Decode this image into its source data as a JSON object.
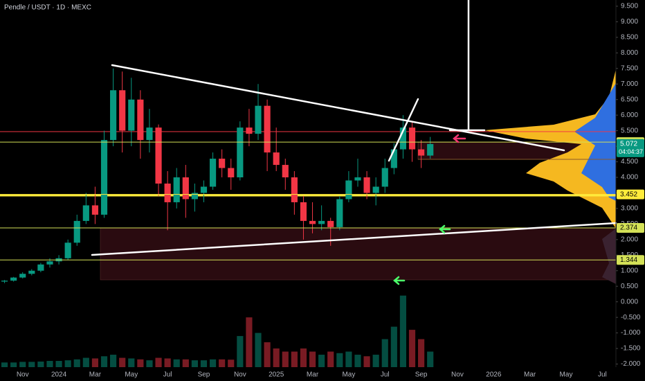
{
  "chart_data": {
    "type": "candlestick",
    "title": "Pendle / USDT · 1D · MEXC",
    "categories": [
      null,
      null,
      "Nov",
      null,
      null,
      null,
      "2024",
      null,
      null,
      null,
      "Mar",
      null,
      null,
      null,
      "May",
      null,
      null,
      null,
      "Jul",
      null,
      null,
      null,
      "Sep",
      null,
      null,
      null,
      "Nov",
      null,
      null,
      null,
      "2025",
      null,
      null,
      null,
      "Mar",
      null,
      null,
      null,
      "May",
      null,
      null,
      null,
      "Jul",
      null,
      null,
      null,
      "Sep",
      null,
      null,
      null,
      "Nov",
      null,
      null,
      null,
      "2026",
      null,
      null,
      null,
      "Mar",
      null,
      null,
      null,
      "May",
      null,
      null,
      null,
      "Jul",
      null
    ],
    "open": [
      0.65,
      0.68,
      0.78,
      0.9,
      1.0,
      1.2,
      1.3,
      1.4,
      1.9,
      2.6,
      3.1,
      2.8,
      5.2,
      6.8,
      5.5,
      6.5,
      5.2,
      5.6,
      3.8,
      3.2,
      4.0,
      3.3,
      3.5,
      3.7,
      4.6,
      4.3,
      4.0,
      5.6,
      5.4,
      6.3,
      4.8,
      4.4,
      4.0,
      3.2,
      2.6,
      2.5,
      2.6,
      2.4,
      3.3,
      3.9,
      4.0,
      3.5,
      3.7,
      4.3,
      4.9,
      5.6,
      4.9,
      4.7,
      null,
      null,
      null,
      null,
      null,
      null,
      null,
      null,
      null,
      null,
      null,
      null,
      null,
      null,
      null,
      null,
      null,
      null,
      null,
      null
    ],
    "high": [
      0.7,
      0.8,
      0.95,
      1.05,
      1.25,
      1.4,
      1.5,
      2.0,
      2.8,
      3.5,
      3.7,
      5.5,
      7.5,
      7.4,
      7.2,
      6.8,
      6.2,
      5.7,
      4.2,
      4.3,
      4.4,
      3.8,
      3.9,
      4.8,
      4.9,
      4.6,
      5.8,
      6.2,
      7.0,
      6.5,
      5.6,
      4.6,
      4.2,
      3.4,
      3.2,
      3.1,
      2.7,
      3.4,
      4.2,
      4.6,
      4.2,
      4.0,
      4.6,
      5.1,
      6.0,
      5.8,
      5.2,
      5.3,
      null,
      null,
      null,
      null,
      null,
      null,
      null,
      null,
      null,
      null,
      null,
      null,
      null,
      null,
      null,
      null,
      null,
      null,
      null,
      null
    ],
    "low": [
      0.6,
      0.65,
      0.75,
      0.85,
      0.95,
      1.1,
      1.2,
      1.35,
      1.8,
      2.5,
      2.5,
      2.7,
      5.0,
      4.8,
      5.0,
      4.6,
      4.8,
      3.4,
      2.3,
      3.0,
      2.7,
      2.9,
      3.2,
      3.6,
      4.0,
      3.6,
      3.9,
      5.0,
      5.2,
      4.2,
      4.2,
      3.6,
      2.8,
      2.0,
      2.2,
      2.3,
      1.8,
      2.3,
      3.2,
      3.7,
      3.3,
      3.1,
      3.5,
      4.1,
      4.6,
      4.5,
      4.3,
      4.6,
      null,
      null,
      null,
      null,
      null,
      null,
      null,
      null,
      null,
      null,
      null,
      null,
      null,
      null,
      null,
      null,
      null,
      null,
      null,
      null
    ],
    "close": [
      0.68,
      0.78,
      0.9,
      1.0,
      1.2,
      1.3,
      1.4,
      1.9,
      2.6,
      3.1,
      2.8,
      5.2,
      6.8,
      5.5,
      6.5,
      5.2,
      5.6,
      3.8,
      3.2,
      4.0,
      3.3,
      3.5,
      3.7,
      4.6,
      4.3,
      4.0,
      5.6,
      5.4,
      6.3,
      4.8,
      4.4,
      4.0,
      3.2,
      2.6,
      2.5,
      2.6,
      2.4,
      3.3,
      3.9,
      4.0,
      3.5,
      3.7,
      4.3,
      4.9,
      5.6,
      4.9,
      4.7,
      5.072,
      null,
      null,
      null,
      null,
      null,
      null,
      null,
      null,
      null,
      null,
      null,
      null,
      null,
      null,
      null,
      null,
      null,
      null,
      null,
      null
    ],
    "volume": [
      -1.95,
      -1.95,
      -1.93,
      -1.93,
      -1.92,
      -1.9,
      -1.9,
      -1.88,
      -1.85,
      -1.8,
      -1.82,
      -1.75,
      -1.7,
      -1.8,
      -1.82,
      -1.85,
      -1.88,
      -1.8,
      -1.82,
      -1.85,
      -1.85,
      -1.88,
      -1.88,
      -1.85,
      -1.85,
      -1.86,
      -1.1,
      -0.5,
      -1.0,
      -1.3,
      -1.5,
      -1.6,
      -1.6,
      -1.5,
      -1.6,
      -1.7,
      -1.6,
      -1.65,
      -1.6,
      -1.7,
      -1.75,
      -1.7,
      -1.2,
      -0.8,
      0.2,
      -0.9,
      -1.2,
      -1.6,
      null,
      null,
      null,
      null,
      null,
      null,
      null,
      null,
      null,
      null,
      null,
      null,
      null,
      null,
      null,
      null,
      null,
      null,
      null,
      null
    ],
    "up_color": "#089981",
    "down_color": "#f23645",
    "ylim": [
      -2.1,
      9.7
    ],
    "yticks": [
      {
        "value": -2,
        "label": "-2.000"
      },
      {
        "value": -1.5,
        "label": "-1.500"
      },
      {
        "value": -1,
        "label": "-1.000"
      },
      {
        "value": -0.5,
        "label": "-0.500"
      },
      {
        "value": 0,
        "label": "0.000"
      },
      {
        "value": 0.5,
        "label": "0.500"
      },
      {
        "value": 1,
        "label": "1.000"
      },
      {
        "value": 1.5,
        "label": "1.500"
      },
      {
        "value": 2,
        "label": "2.000"
      },
      {
        "value": 2.5,
        "label": "2.500"
      },
      {
        "value": 3,
        "label": "3.000"
      },
      {
        "value": 3.5,
        "label": "3.500"
      },
      {
        "value": 4,
        "label": "4.000"
      },
      {
        "value": 4.5,
        "label": "4.500"
      },
      {
        "value": 5,
        "label": "5.000"
      },
      {
        "value": 5.5,
        "label": "5.500"
      },
      {
        "value": 6,
        "label": "6.000"
      },
      {
        "value": 6.5,
        "label": "6.500"
      },
      {
        "value": 7,
        "label": "7.000"
      },
      {
        "value": 7.5,
        "label": "7.500"
      },
      {
        "value": 8,
        "label": "8.000"
      },
      {
        "value": 8.5,
        "label": "8.500"
      },
      {
        "value": 9,
        "label": "9.000"
      },
      {
        "value": 9.5,
        "label": "9.500"
      }
    ],
    "levels": [
      {
        "value": 5.132,
        "color": "#d4e157"
      },
      {
        "value": 3.452,
        "color": "#ffeb3b"
      },
      {
        "value": 2.374,
        "color": "#d4e157"
      },
      {
        "value": 1.344,
        "color": "#d4e157"
      }
    ],
    "last_price": {
      "value": 5.072,
      "countdown": "04:04:37",
      "color": "#089981"
    }
  }
}
